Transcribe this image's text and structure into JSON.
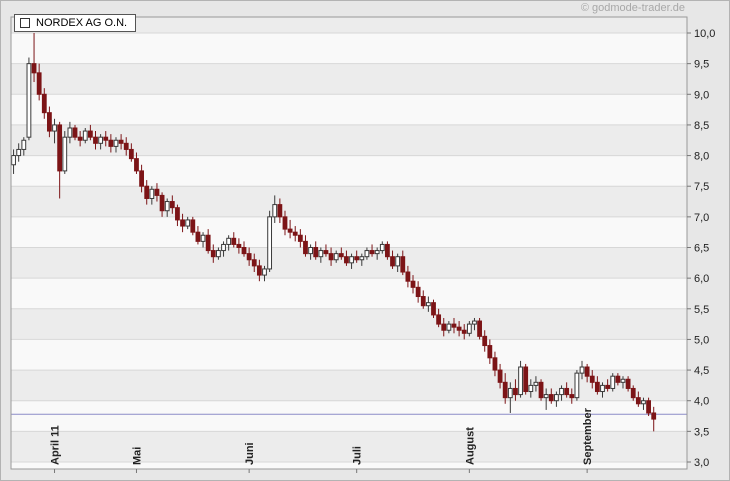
{
  "branding": {
    "copyright": "© godmode-trader.de"
  },
  "legend": {
    "label": "NORDEX AG O.N."
  },
  "chart_data": {
    "type": "candlestick",
    "title": "NORDEX AG O.N.",
    "xlabel": "",
    "ylabel": "",
    "y_axis": {
      "min": 3.0,
      "max": 10.0,
      "step": 0.5,
      "labels": [
        "10,0",
        "9,5",
        "9,0",
        "8,5",
        "8,0",
        "7,5",
        "7,0",
        "6,5",
        "6,0",
        "5,5",
        "5,0",
        "4,5",
        "4,0",
        "3,5",
        "3,0"
      ]
    },
    "x_ticks": [
      {
        "label": "April 11",
        "index": 8
      },
      {
        "label": "Mai",
        "index": 24
      },
      {
        "label": "Juni",
        "index": 46
      },
      {
        "label": "Juli",
        "index": 67
      },
      {
        "label": "August",
        "index": 89
      },
      {
        "label": "September",
        "index": 112
      }
    ],
    "support_line": 3.78,
    "colors": {
      "up_fill": "#ffffff",
      "up_stroke": "#3a3a3a",
      "down_fill": "#7c1417",
      "down_stroke": "#7c1417",
      "grid": "#d7d7d7",
      "band_dark": "#ececec",
      "band_light": "#f9f9f9",
      "support_line": "#8c8cc8",
      "plot_border": "#999999",
      "axis_text": "#222222",
      "tick": "#777777"
    },
    "candles": [
      [
        7.85,
        8.1,
        7.7,
        8.0
      ],
      [
        8.0,
        8.2,
        7.9,
        8.1
      ],
      [
        8.1,
        8.3,
        8.0,
        8.25
      ],
      [
        8.3,
        9.6,
        8.25,
        9.5
      ],
      [
        9.5,
        10.0,
        9.2,
        9.35
      ],
      [
        9.35,
        9.5,
        8.9,
        9.0
      ],
      [
        9.0,
        9.1,
        8.6,
        8.7
      ],
      [
        8.7,
        8.8,
        8.3,
        8.4
      ],
      [
        8.4,
        8.6,
        8.2,
        8.5
      ],
      [
        8.5,
        8.55,
        7.3,
        7.75
      ],
      [
        7.75,
        8.4,
        7.7,
        8.3
      ],
      [
        8.3,
        8.55,
        8.2,
        8.45
      ],
      [
        8.45,
        8.5,
        8.25,
        8.3
      ],
      [
        8.3,
        8.4,
        8.15,
        8.25
      ],
      [
        8.25,
        8.45,
        8.2,
        8.4
      ],
      [
        8.4,
        8.5,
        8.25,
        8.3
      ],
      [
        8.3,
        8.4,
        8.1,
        8.2
      ],
      [
        8.2,
        8.35,
        8.1,
        8.3
      ],
      [
        8.3,
        8.4,
        8.15,
        8.25
      ],
      [
        8.25,
        8.35,
        8.05,
        8.15
      ],
      [
        8.15,
        8.3,
        8.05,
        8.25
      ],
      [
        8.25,
        8.35,
        8.1,
        8.2
      ],
      [
        8.2,
        8.3,
        8.0,
        8.1
      ],
      [
        8.1,
        8.2,
        7.9,
        7.95
      ],
      [
        7.95,
        8.05,
        7.7,
        7.75
      ],
      [
        7.75,
        7.85,
        7.4,
        7.5
      ],
      [
        7.5,
        7.6,
        7.2,
        7.3
      ],
      [
        7.3,
        7.5,
        7.2,
        7.45
      ],
      [
        7.45,
        7.55,
        7.25,
        7.35
      ],
      [
        7.35,
        7.4,
        7.0,
        7.1
      ],
      [
        7.1,
        7.3,
        7.0,
        7.25
      ],
      [
        7.25,
        7.35,
        7.05,
        7.15
      ],
      [
        7.15,
        7.2,
        6.85,
        6.95
      ],
      [
        6.95,
        7.05,
        6.75,
        6.85
      ],
      [
        6.85,
        7.0,
        6.8,
        6.95
      ],
      [
        6.95,
        7.0,
        6.7,
        6.75
      ],
      [
        6.75,
        6.85,
        6.55,
        6.6
      ],
      [
        6.6,
        6.75,
        6.5,
        6.7
      ],
      [
        6.7,
        6.8,
        6.4,
        6.45
      ],
      [
        6.45,
        6.55,
        6.25,
        6.35
      ],
      [
        6.35,
        6.5,
        6.3,
        6.45
      ],
      [
        6.45,
        6.6,
        6.35,
        6.55
      ],
      [
        6.55,
        6.7,
        6.45,
        6.65
      ],
      [
        6.65,
        6.75,
        6.5,
        6.55
      ],
      [
        6.55,
        6.65,
        6.4,
        6.5
      ],
      [
        6.5,
        6.6,
        6.35,
        6.4
      ],
      [
        6.4,
        6.5,
        6.2,
        6.3
      ],
      [
        6.3,
        6.4,
        6.1,
        6.2
      ],
      [
        6.2,
        6.3,
        5.95,
        6.05
      ],
      [
        6.05,
        6.2,
        5.95,
        6.15
      ],
      [
        6.15,
        7.1,
        6.1,
        7.0
      ],
      [
        7.0,
        7.35,
        6.9,
        7.2
      ],
      [
        7.2,
        7.3,
        6.9,
        7.0
      ],
      [
        7.0,
        7.1,
        6.7,
        6.8
      ],
      [
        6.8,
        6.95,
        6.65,
        6.75
      ],
      [
        6.75,
        6.85,
        6.6,
        6.7
      ],
      [
        6.7,
        6.8,
        6.5,
        6.6
      ],
      [
        6.6,
        6.7,
        6.35,
        6.4
      ],
      [
        6.4,
        6.55,
        6.3,
        6.5
      ],
      [
        6.5,
        6.6,
        6.3,
        6.35
      ],
      [
        6.35,
        6.5,
        6.25,
        6.45
      ],
      [
        6.45,
        6.55,
        6.35,
        6.4
      ],
      [
        6.4,
        6.5,
        6.2,
        6.3
      ],
      [
        6.3,
        6.45,
        6.25,
        6.4
      ],
      [
        6.4,
        6.5,
        6.3,
        6.35
      ],
      [
        6.35,
        6.45,
        6.2,
        6.25
      ],
      [
        6.25,
        6.4,
        6.15,
        6.35
      ],
      [
        6.35,
        6.45,
        6.25,
        6.3
      ],
      [
        6.3,
        6.4,
        6.2,
        6.35
      ],
      [
        6.35,
        6.5,
        6.3,
        6.45
      ],
      [
        6.45,
        6.55,
        6.35,
        6.4
      ],
      [
        6.4,
        6.5,
        6.3,
        6.45
      ],
      [
        6.45,
        6.6,
        6.4,
        6.55
      ],
      [
        6.55,
        6.6,
        6.3,
        6.35
      ],
      [
        6.35,
        6.45,
        6.15,
        6.2
      ],
      [
        6.2,
        6.4,
        6.1,
        6.35
      ],
      [
        6.35,
        6.45,
        6.05,
        6.1
      ],
      [
        6.1,
        6.2,
        5.85,
        5.95
      ],
      [
        5.95,
        6.05,
        5.75,
        5.85
      ],
      [
        5.85,
        5.95,
        5.6,
        5.7
      ],
      [
        5.7,
        5.8,
        5.5,
        5.55
      ],
      [
        5.55,
        5.7,
        5.45,
        5.6
      ],
      [
        5.6,
        5.65,
        5.35,
        5.4
      ],
      [
        5.4,
        5.5,
        5.2,
        5.25
      ],
      [
        5.25,
        5.35,
        5.05,
        5.15
      ],
      [
        5.15,
        5.3,
        5.1,
        5.25
      ],
      [
        5.25,
        5.35,
        5.1,
        5.2
      ],
      [
        5.2,
        5.3,
        5.05,
        5.15
      ],
      [
        5.15,
        5.25,
        5.0,
        5.1
      ],
      [
        5.1,
        5.3,
        5.05,
        5.25
      ],
      [
        5.25,
        5.35,
        5.15,
        5.3
      ],
      [
        5.3,
        5.35,
        5.0,
        5.05
      ],
      [
        5.05,
        5.15,
        4.8,
        4.9
      ],
      [
        4.9,
        5.0,
        4.6,
        4.7
      ],
      [
        4.7,
        4.8,
        4.4,
        4.5
      ],
      [
        4.5,
        4.6,
        4.2,
        4.3
      ],
      [
        4.3,
        4.45,
        3.95,
        4.05
      ],
      [
        4.05,
        4.3,
        3.8,
        4.2
      ],
      [
        4.2,
        4.35,
        4.0,
        4.1
      ],
      [
        4.1,
        4.65,
        4.05,
        4.55
      ],
      [
        4.55,
        4.6,
        4.1,
        4.15
      ],
      [
        4.15,
        4.35,
        4.05,
        4.25
      ],
      [
        4.25,
        4.4,
        4.15,
        4.3
      ],
      [
        4.3,
        4.35,
        4.0,
        4.05
      ],
      [
        4.05,
        4.2,
        3.85,
        4.1
      ],
      [
        4.1,
        4.2,
        3.95,
        4.0
      ],
      [
        4.0,
        4.15,
        3.9,
        4.1
      ],
      [
        4.1,
        4.25,
        4.0,
        4.2
      ],
      [
        4.2,
        4.3,
        4.05,
        4.1
      ],
      [
        4.1,
        4.2,
        3.95,
        4.05
      ],
      [
        4.05,
        4.5,
        4.0,
        4.45
      ],
      [
        4.45,
        4.65,
        4.35,
        4.55
      ],
      [
        4.55,
        4.6,
        4.3,
        4.4
      ],
      [
        4.4,
        4.5,
        4.2,
        4.3
      ],
      [
        4.3,
        4.4,
        4.1,
        4.15
      ],
      [
        4.15,
        4.3,
        4.05,
        4.25
      ],
      [
        4.25,
        4.35,
        4.15,
        4.2
      ],
      [
        4.2,
        4.45,
        4.15,
        4.4
      ],
      [
        4.4,
        4.45,
        4.25,
        4.3
      ],
      [
        4.3,
        4.4,
        4.2,
        4.35
      ],
      [
        4.35,
        4.4,
        4.15,
        4.2
      ],
      [
        4.2,
        4.25,
        4.0,
        4.05
      ],
      [
        4.05,
        4.15,
        3.9,
        3.95
      ],
      [
        3.95,
        4.05,
        3.85,
        4.0
      ],
      [
        4.0,
        4.05,
        3.75,
        3.8
      ],
      [
        3.8,
        3.9,
        3.5,
        3.7
      ]
    ]
  }
}
